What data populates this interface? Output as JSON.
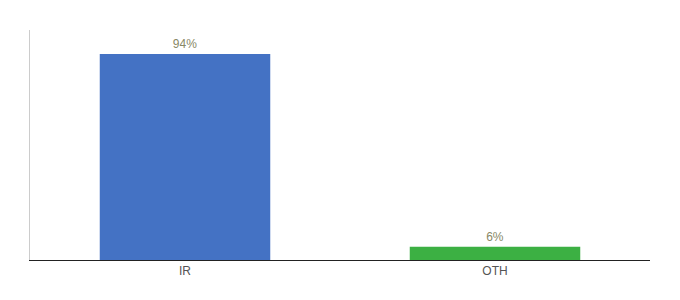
{
  "chart_data": {
    "type": "bar",
    "categories": [
      "IR",
      "OTH"
    ],
    "values": [
      94,
      6
    ],
    "value_labels": [
      "94%",
      "6%"
    ],
    "colors": [
      "#4472c4",
      "#3cb043"
    ],
    "ylim": [
      0,
      105
    ],
    "tick_labels": "x",
    "data_labels": true,
    "grid": false
  }
}
